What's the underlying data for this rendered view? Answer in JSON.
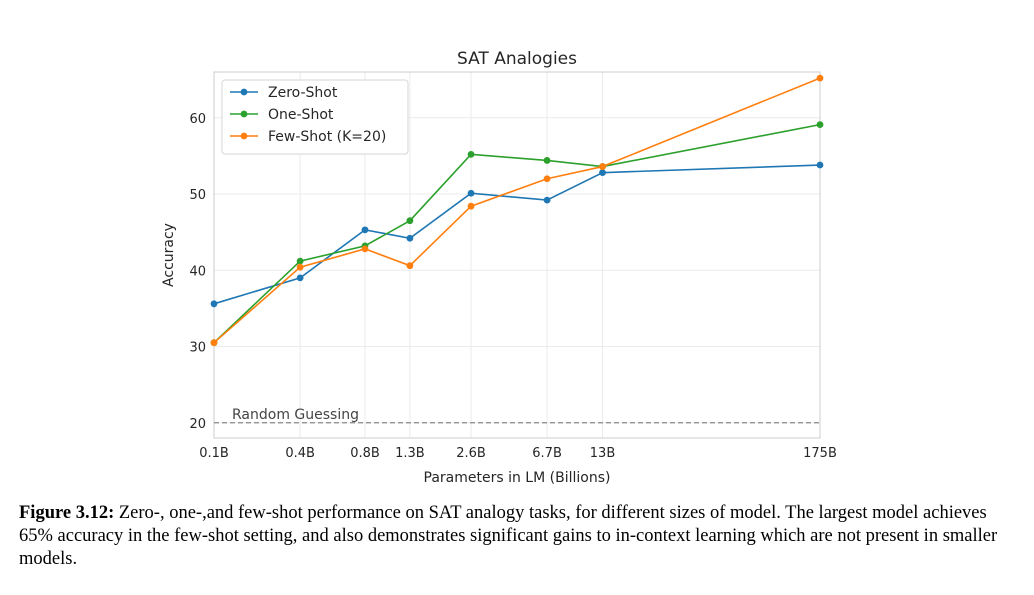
{
  "colors": {
    "zero_shot": "#1f77b4",
    "one_shot": "#2ca02c",
    "few_shot": "#ff7f0e",
    "random": "#888888",
    "grid": "#ebebeb",
    "axes": "#cccccc"
  },
  "chart_data": {
    "type": "line",
    "title": "SAT Analogies",
    "xlabel": "Parameters in LM (Billions)",
    "ylabel": "Accuracy",
    "x_scale": "log",
    "categories": [
      "0.1B",
      "0.4B",
      "0.8B",
      "1.3B",
      "2.6B",
      "6.7B",
      "13B",
      "175B"
    ],
    "x": [
      0.125,
      0.35,
      0.76,
      1.3,
      2.7,
      6.7,
      13,
      175
    ],
    "ylim": [
      18,
      66
    ],
    "yticks": [
      20,
      30,
      40,
      50,
      60
    ],
    "grid": true,
    "legend_position": "top-left",
    "series": [
      {
        "name": "Zero-Shot",
        "color_key": "zero_shot",
        "values": [
          35.6,
          39.0,
          45.3,
          44.2,
          50.1,
          49.2,
          52.8,
          53.8
        ]
      },
      {
        "name": "One-Shot",
        "color_key": "one_shot",
        "values": [
          30.5,
          41.2,
          43.2,
          46.5,
          55.2,
          54.4,
          53.6,
          59.1
        ]
      },
      {
        "name": "Few-Shot (K=20)",
        "color_key": "few_shot",
        "values": [
          30.5,
          40.4,
          42.8,
          40.6,
          48.4,
          52.0,
          53.6,
          65.2
        ]
      }
    ],
    "baseline": {
      "label": "Random Guessing",
      "value": 20
    }
  },
  "caption": {
    "label": "Figure 3.12:",
    "text": "Zero-, one-,and few-shot performance on SAT analogy tasks, for different sizes of model. The largest model achieves 65% accuracy in the few-shot setting, and also demonstrates significant gains to in-context learning which are not present in smaller models."
  }
}
